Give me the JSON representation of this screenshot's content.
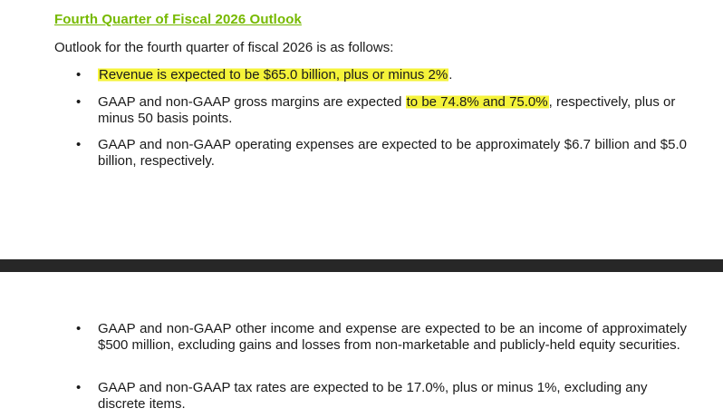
{
  "section": {
    "title": "Fourth Quarter of Fiscal 2026 Outlook",
    "intro": "Outlook for the fourth quarter of fiscal 2026 is as follows:"
  },
  "bullet_glyph": "•",
  "items": [
    {
      "highlight": "Revenue is expected to be $65.0 billion, plus or minus 2%",
      "rest": "."
    },
    {
      "before": "GAAP and non-GAAP gross margins are expected ",
      "highlight": "to be 74.8% and 75.0%",
      "after": ", respectively, plus or minus 50 basis points."
    },
    {
      "text": "GAAP and non-GAAP operating expenses are expected to be approximately $6.7 billion and $5.0 billion, respectively."
    },
    {
      "text": "GAAP and non-GAAP other income and expense are expected to be an income of approximately $500 million, excluding gains and losses from non-marketable and publicly-held equity securities."
    },
    {
      "text": "GAAP and non-GAAP tax rates are expected to be 17.0%, plus or minus 1%, excluding any discrete items."
    }
  ],
  "colors": {
    "title": "#76b900",
    "highlight": "#f5f33a",
    "page_gap": "#272727",
    "text": "#1a1a1a"
  }
}
